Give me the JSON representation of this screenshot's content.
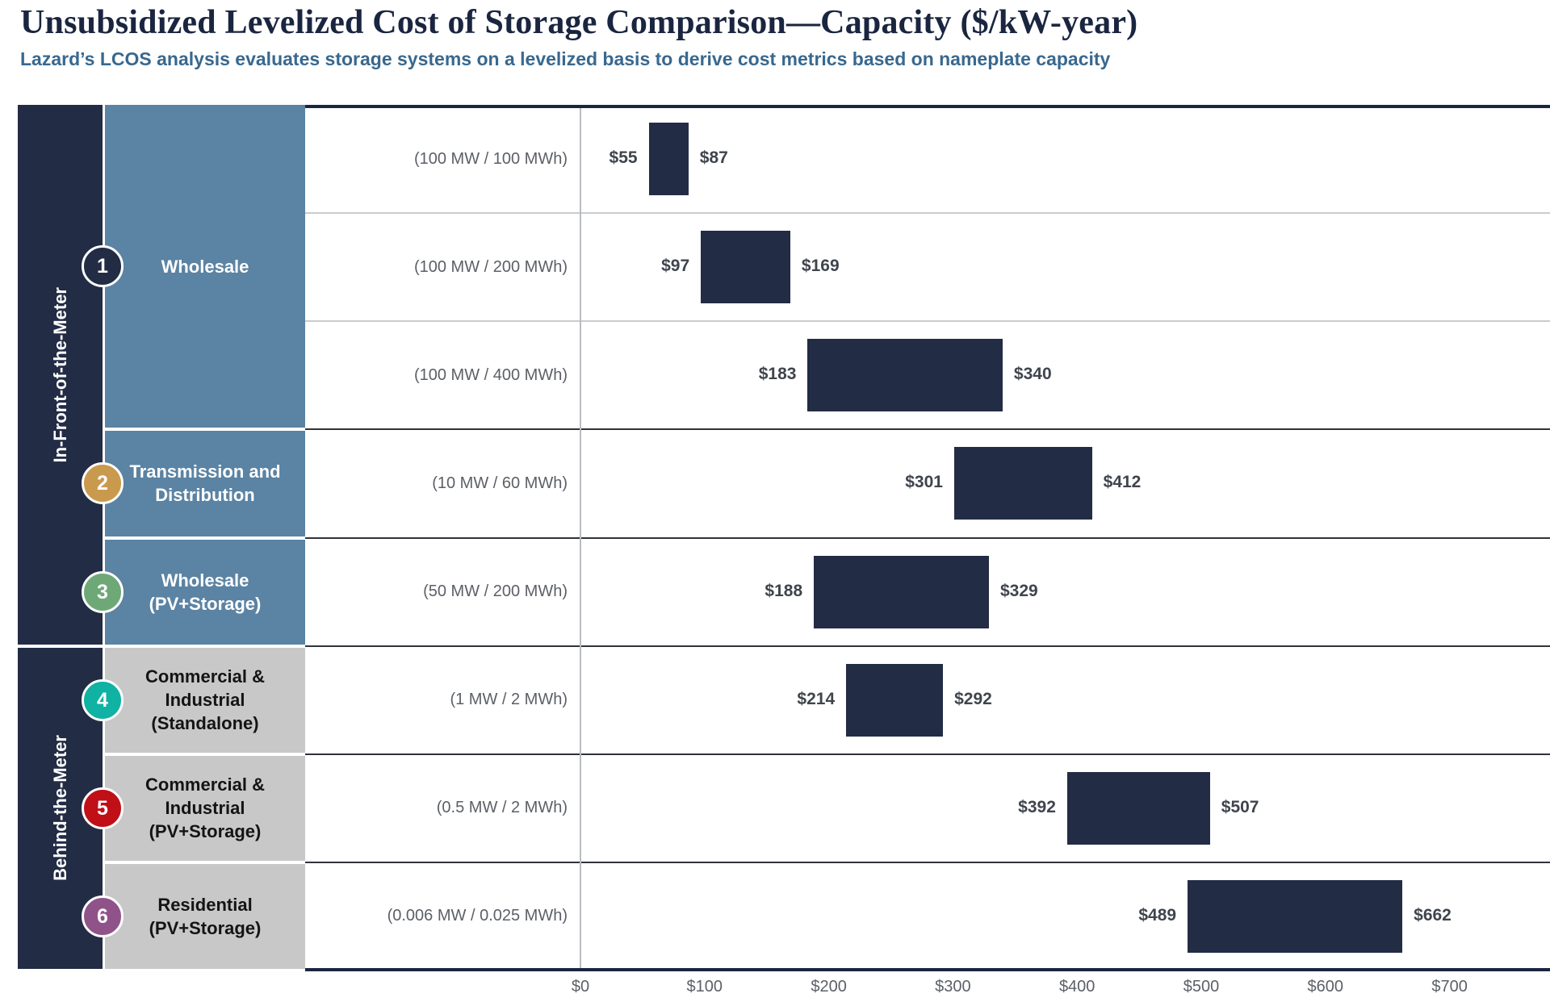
{
  "header": {
    "title": "Unsubsidized Levelized Cost of Storage Comparison—Capacity ($/kW-year)",
    "subtitle": "Lazard’s LCOS analysis evaluates storage systems on a levelized basis to derive cost metrics based on nameplate capacity"
  },
  "colors": {
    "navy": "#232c45",
    "steel_blue": "#5b83a3",
    "gray_block": "#c8c8c8",
    "bar": "#232c45",
    "blue_block_text": "#ffffff",
    "gray_block_text": "#141414",
    "badge_1": "#232c45",
    "badge_2": "#c99a4e",
    "badge_3": "#6fa877",
    "badge_4": "#0fb2a3",
    "badge_5": "#c00f17",
    "badge_6": "#8f538a"
  },
  "meter_groups": [
    {
      "label": "In-Front-of-the-Meter",
      "row_start": 0,
      "row_end": 4
    },
    {
      "label": "Behind-the-Meter",
      "row_start": 5,
      "row_end": 7
    }
  ],
  "categories": [
    {
      "number": "1",
      "badge_color_key": "badge_1",
      "block": "blue",
      "lines": [
        "Wholesale"
      ],
      "row_start": 0,
      "row_end": 2
    },
    {
      "number": "2",
      "badge_color_key": "badge_2",
      "block": "blue",
      "lines": [
        "Transmission and",
        "Distribution"
      ],
      "row_start": 3,
      "row_end": 3
    },
    {
      "number": "3",
      "badge_color_key": "badge_3",
      "block": "blue",
      "lines": [
        "Wholesale",
        "(PV+Storage)"
      ],
      "row_start": 4,
      "row_end": 4
    },
    {
      "number": "4",
      "badge_color_key": "badge_4",
      "block": "gray",
      "lines": [
        "Commercial &",
        "Industrial",
        "(Standalone)"
      ],
      "row_start": 5,
      "row_end": 5
    },
    {
      "number": "5",
      "badge_color_key": "badge_5",
      "block": "gray",
      "lines": [
        "Commercial &",
        "Industrial",
        "(PV+Storage)"
      ],
      "row_start": 6,
      "row_end": 6
    },
    {
      "number": "6",
      "badge_color_key": "badge_6",
      "block": "gray",
      "lines": [
        "Residential",
        "(PV+Storage)"
      ],
      "row_start": 7,
      "row_end": 7
    }
  ],
  "chart_data": {
    "type": "bar",
    "subtype": "horizontal-floating-range-bars",
    "title": "Unsubsidized Levelized Cost of Storage Comparison—Capacity ($/kW-year)",
    "xlabel": "$/kW-year",
    "ylabel": "",
    "xlim": [
      0,
      700
    ],
    "grid": "zero-line-only",
    "legend": "none",
    "x_tick_values": [
      0,
      100,
      200,
      300,
      400,
      500,
      600,
      700
    ],
    "x_tick_labels": [
      "$0",
      "$100",
      "$200",
      "$300",
      "$400",
      "$500",
      "$600",
      "$700"
    ],
    "rows": [
      {
        "group": "In-Front-of-the-Meter",
        "category": "Wholesale",
        "config": "(100 MW / 100 MWh)",
        "min": 55,
        "max": 87,
        "min_label": "$55",
        "max_label": "$87"
      },
      {
        "group": "In-Front-of-the-Meter",
        "category": "Wholesale",
        "config": "(100 MW / 200 MWh)",
        "min": 97,
        "max": 169,
        "min_label": "$97",
        "max_label": "$169"
      },
      {
        "group": "In-Front-of-the-Meter",
        "category": "Wholesale",
        "config": "(100 MW / 400 MWh)",
        "min": 183,
        "max": 340,
        "min_label": "$183",
        "max_label": "$340"
      },
      {
        "group": "In-Front-of-the-Meter",
        "category": "Transmission and Distribution",
        "config": "(10 MW / 60 MWh)",
        "min": 301,
        "max": 412,
        "min_label": "$301",
        "max_label": "$412"
      },
      {
        "group": "In-Front-of-the-Meter",
        "category": "Wholesale (PV+Storage)",
        "config": "(50 MW / 200 MWh)",
        "min": 188,
        "max": 329,
        "min_label": "$188",
        "max_label": "$329"
      },
      {
        "group": "Behind-the-Meter",
        "category": "Commercial & Industrial (Standalone)",
        "config": "(1 MW / 2 MWh)",
        "min": 214,
        "max": 292,
        "min_label": "$214",
        "max_label": "$292"
      },
      {
        "group": "Behind-the-Meter",
        "category": "Commercial & Industrial (PV+Storage)",
        "config": "(0.5 MW / 2 MWh)",
        "min": 392,
        "max": 507,
        "min_label": "$392",
        "max_label": "$507"
      },
      {
        "group": "Behind-the-Meter",
        "category": "Residential (PV+Storage)",
        "config": "(0.006 MW / 0.025 MWh)",
        "min": 489,
        "max": 662,
        "min_label": "$489",
        "max_label": "$662"
      }
    ]
  }
}
